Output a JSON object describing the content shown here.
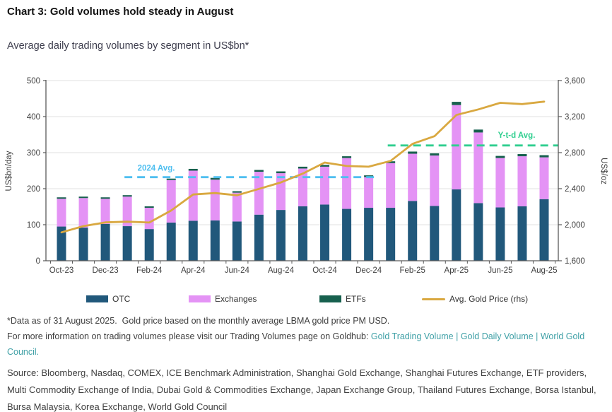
{
  "header": {
    "title": "Chart 3: Gold volumes hold steady in August",
    "subtitle": "Average daily trading volumes by segment in US$bn*"
  },
  "chart_data": {
    "type": "bar",
    "subtype": "stacked-bars-with-line-overlay",
    "grid": "horizontal",
    "legend_position": "bottom",
    "categories": [
      "Oct-23",
      "Nov-23",
      "Dec-23",
      "Jan-24",
      "Feb-24",
      "Mar-24",
      "Apr-24",
      "May-24",
      "Jun-24",
      "Jul-24",
      "Aug-24",
      "Sep-24",
      "Oct-24",
      "Nov-24",
      "Dec-24",
      "Jan-25",
      "Feb-25",
      "Mar-25",
      "Apr-25",
      "May-25",
      "Jun-25",
      "Jul-25",
      "Aug-25"
    ],
    "x_tick_labels": [
      "Oct-23",
      "Dec-23",
      "Feb-24",
      "Apr-24",
      "Jun-24",
      "Aug-24",
      "Oct-24",
      "Dec-24",
      "Feb-25",
      "Apr-25",
      "Jun-25",
      "Aug-25"
    ],
    "left_axis": {
      "title": "US$bn/day",
      "min": 0,
      "max": 500,
      "tick_values": [
        0,
        100,
        200,
        300,
        400,
        500
      ],
      "tick_labels": [
        "0",
        "100",
        "200",
        "300",
        "400",
        "500"
      ]
    },
    "right_axis": {
      "title": "US$/oz",
      "min": 1600,
      "max": 3600,
      "tick_values": [
        1600,
        2000,
        2400,
        2800,
        3200,
        3600
      ],
      "tick_labels": [
        "1,600",
        "2,000",
        "2,400",
        "2,800",
        "3,200",
        "3,600"
      ]
    },
    "series": [
      {
        "name": "OTC",
        "type": "bar",
        "axis": "left",
        "color": "#21587B",
        "values": [
          95,
          92,
          102,
          96,
          88,
          106,
          111,
          112,
          109,
          128,
          141,
          151,
          156,
          144,
          147,
          147,
          166,
          152,
          198,
          160,
          148,
          151,
          171
        ]
      },
      {
        "name": "Exchanges",
        "type": "bar",
        "axis": "left",
        "color": "#E493F5",
        "values": [
          77,
          82,
          70,
          82,
          59,
          118,
          139,
          113,
          80,
          119,
          102,
          105,
          105,
          141,
          85,
          124,
          131,
          140,
          234,
          196,
          137,
          139,
          116
        ]
      },
      {
        "name": "ETFs",
        "type": "bar",
        "axis": "left",
        "color": "#17604E",
        "values": [
          4,
          4,
          4,
          4,
          4,
          4,
          5,
          5,
          4,
          5,
          5,
          5,
          5,
          5,
          5,
          5,
          6,
          6,
          9,
          8,
          6,
          6,
          6
        ]
      },
      {
        "name": "Avg. Gold Price (rhs)",
        "type": "line",
        "axis": "right",
        "color": "#D9A840",
        "values": [
          1915,
          1984,
          2026,
          2034,
          2024,
          2158,
          2336,
          2351,
          2327,
          2398,
          2470,
          2568,
          2690,
          2652,
          2644,
          2708,
          2897,
          2983,
          3218,
          3280,
          3353,
          3339,
          3366
        ]
      }
    ],
    "annotations": [
      {
        "label": "2024 Avg.",
        "value": 232,
        "from": "Jan-24",
        "to": "Dec-24",
        "color": "#4FBFF0",
        "style": "dashed"
      },
      {
        "label": "Y-t-d Avg.",
        "value": 320,
        "from": "Jan-25",
        "to": "Aug-25",
        "color": "#2FCE8F",
        "style": "dashed"
      }
    ]
  },
  "footnotes": {
    "line1": "*Data as of 31 August 2025.  Gold price based on the monthly average LBMA gold price PM USD.",
    "line2_prefix": "For more information on trading volumes please visit our Trading Volumes page on Goldhub: ",
    "link1": "Gold Trading Volume",
    "sep1": " | ",
    "link2": "Gold Daily Volume",
    "sep2": " | ",
    "link3": "World Gold Council.",
    "source": "Source: Bloomberg, Nasdaq, COMEX, ICE Benchmark Administration, Shanghai Gold Exchange, Shanghai Futures Exchange, ETF providers, Multi Commodity Exchange of India, Dubai Gold & Commodities Exchange, Japan Exchange Group, Thailand Futures Exchange, Borsa Istanbul, Bursa Malaysia, Korea Exchange, World Gold Council"
  }
}
